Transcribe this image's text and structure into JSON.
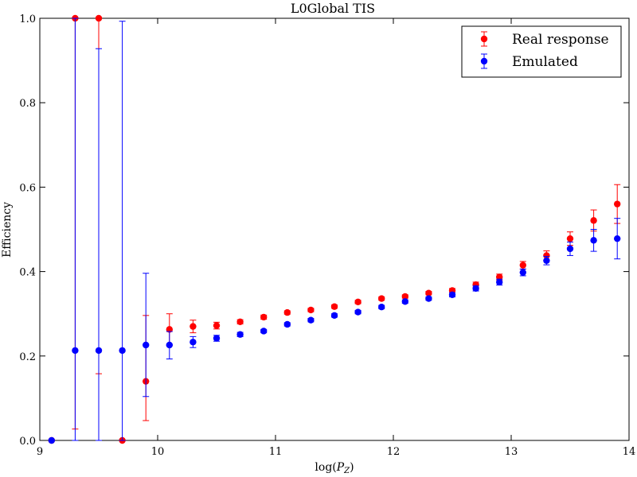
{
  "chart_data": {
    "type": "scatter",
    "title": "L0Global TIS",
    "xlabel": "log(",
    "xlabel_sub": "Z",
    "xlabel_var": "P",
    "xlabel_close": ")",
    "ylabel": "Efficiency",
    "xlim": [
      9,
      14
    ],
    "ylim": [
      0.0,
      1.0
    ],
    "xticks": [
      "9",
      "10",
      "11",
      "12",
      "13",
      "14"
    ],
    "yticks": [
      "0.0",
      "0.2",
      "0.4",
      "0.6",
      "0.8",
      "1.0"
    ],
    "xtick_values": [
      9,
      10,
      11,
      12,
      13,
      14
    ],
    "ytick_values": [
      0.0,
      0.2,
      0.4,
      0.6,
      0.8,
      1.0
    ],
    "legend_position": "top-right",
    "series": [
      {
        "name": "Real response",
        "color": "#ff0000",
        "points": [
          {
            "x": 9.1,
            "y": 0.0,
            "lo": 0.0,
            "hi": 0.0
          },
          {
            "x": 9.3,
            "y": 1.0,
            "lo": 0.027,
            "hi": 1.0
          },
          {
            "x": 9.5,
            "y": 1.0,
            "lo": 0.158,
            "hi": 1.0
          },
          {
            "x": 9.7,
            "y": 0.0,
            "lo": 0.0,
            "hi": 0.0
          },
          {
            "x": 9.9,
            "y": 0.14,
            "lo": 0.047,
            "hi": 0.296
          },
          {
            "x": 10.1,
            "y": 0.263,
            "lo": 0.225,
            "hi": 0.3
          },
          {
            "x": 10.3,
            "y": 0.27,
            "lo": 0.255,
            "hi": 0.285
          },
          {
            "x": 10.5,
            "y": 0.272,
            "lo": 0.264,
            "hi": 0.28
          },
          {
            "x": 10.7,
            "y": 0.281,
            "lo": 0.276,
            "hi": 0.286
          },
          {
            "x": 10.9,
            "y": 0.292,
            "lo": 0.287,
            "hi": 0.297
          },
          {
            "x": 11.1,
            "y": 0.303,
            "lo": 0.299,
            "hi": 0.307
          },
          {
            "x": 11.3,
            "y": 0.309,
            "lo": 0.305,
            "hi": 0.313
          },
          {
            "x": 11.5,
            "y": 0.317,
            "lo": 0.313,
            "hi": 0.321
          },
          {
            "x": 11.7,
            "y": 0.328,
            "lo": 0.324,
            "hi": 0.332
          },
          {
            "x": 11.9,
            "y": 0.336,
            "lo": 0.332,
            "hi": 0.34
          },
          {
            "x": 12.1,
            "y": 0.341,
            "lo": 0.337,
            "hi": 0.345
          },
          {
            "x": 12.3,
            "y": 0.349,
            "lo": 0.345,
            "hi": 0.353
          },
          {
            "x": 12.5,
            "y": 0.355,
            "lo": 0.35,
            "hi": 0.36
          },
          {
            "x": 12.7,
            "y": 0.369,
            "lo": 0.363,
            "hi": 0.375
          },
          {
            "x": 12.9,
            "y": 0.387,
            "lo": 0.38,
            "hi": 0.394
          },
          {
            "x": 13.1,
            "y": 0.415,
            "lo": 0.406,
            "hi": 0.424
          },
          {
            "x": 13.3,
            "y": 0.438,
            "lo": 0.427,
            "hi": 0.449
          },
          {
            "x": 13.5,
            "y": 0.478,
            "lo": 0.462,
            "hi": 0.494
          },
          {
            "x": 13.7,
            "y": 0.521,
            "lo": 0.496,
            "hi": 0.546
          },
          {
            "x": 13.9,
            "y": 0.56,
            "lo": 0.514,
            "hi": 0.606
          }
        ]
      },
      {
        "name": "Emulated",
        "color": "#0000ff",
        "points": [
          {
            "x": 9.1,
            "y": 0.0,
            "lo": 0.0,
            "hi": 0.0
          },
          {
            "x": 9.3,
            "y": 0.213,
            "lo": 0.0,
            "hi": 1.0
          },
          {
            "x": 9.5,
            "y": 0.213,
            "lo": 0.0,
            "hi": 0.928
          },
          {
            "x": 9.7,
            "y": 0.213,
            "lo": 0.0,
            "hi": 0.993
          },
          {
            "x": 9.9,
            "y": 0.226,
            "lo": 0.104,
            "hi": 0.396
          },
          {
            "x": 10.1,
            "y": 0.226,
            "lo": 0.193,
            "hi": 0.258
          },
          {
            "x": 10.3,
            "y": 0.233,
            "lo": 0.22,
            "hi": 0.246
          },
          {
            "x": 10.5,
            "y": 0.242,
            "lo": 0.235,
            "hi": 0.249
          },
          {
            "x": 10.7,
            "y": 0.251,
            "lo": 0.246,
            "hi": 0.256
          },
          {
            "x": 10.9,
            "y": 0.259,
            "lo": 0.255,
            "hi": 0.263
          },
          {
            "x": 11.1,
            "y": 0.275,
            "lo": 0.271,
            "hi": 0.279
          },
          {
            "x": 11.3,
            "y": 0.285,
            "lo": 0.281,
            "hi": 0.289
          },
          {
            "x": 11.5,
            "y": 0.296,
            "lo": 0.292,
            "hi": 0.3
          },
          {
            "x": 11.7,
            "y": 0.304,
            "lo": 0.3,
            "hi": 0.308
          },
          {
            "x": 11.9,
            "y": 0.316,
            "lo": 0.312,
            "hi": 0.32
          },
          {
            "x": 12.1,
            "y": 0.329,
            "lo": 0.325,
            "hi": 0.333
          },
          {
            "x": 12.3,
            "y": 0.336,
            "lo": 0.332,
            "hi": 0.34
          },
          {
            "x": 12.5,
            "y": 0.345,
            "lo": 0.34,
            "hi": 0.35
          },
          {
            "x": 12.7,
            "y": 0.36,
            "lo": 0.354,
            "hi": 0.366
          },
          {
            "x": 12.9,
            "y": 0.375,
            "lo": 0.368,
            "hi": 0.382
          },
          {
            "x": 13.1,
            "y": 0.398,
            "lo": 0.39,
            "hi": 0.406
          },
          {
            "x": 13.3,
            "y": 0.426,
            "lo": 0.416,
            "hi": 0.436
          },
          {
            "x": 13.5,
            "y": 0.454,
            "lo": 0.438,
            "hi": 0.47
          },
          {
            "x": 13.7,
            "y": 0.474,
            "lo": 0.448,
            "hi": 0.5
          },
          {
            "x": 13.9,
            "y": 0.478,
            "lo": 0.43,
            "hi": 0.526
          }
        ]
      }
    ]
  }
}
